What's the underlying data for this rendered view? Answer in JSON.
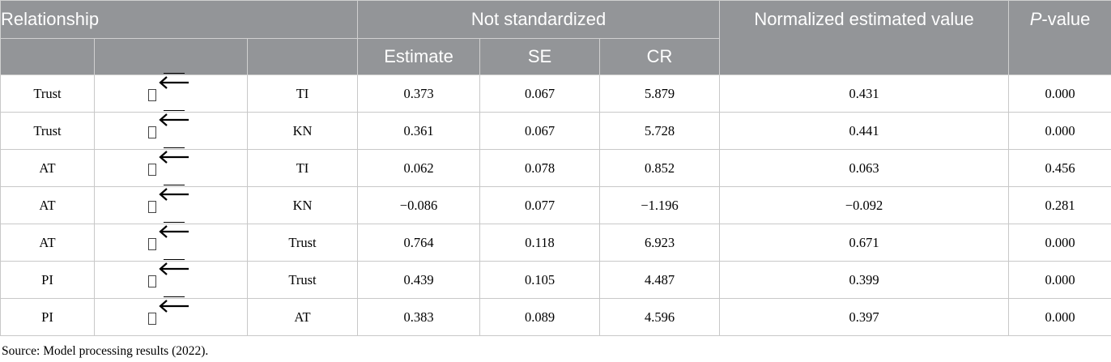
{
  "header": {
    "relationship": "Relationship",
    "not_standardized": "Not standardized",
    "normalized": "Normalized estimated value",
    "p_prefix": "P",
    "p_suffix": "-value",
    "estimate": "Estimate",
    "se": "SE",
    "cr": "CR"
  },
  "rows": [
    {
      "from": "Trust",
      "to": "TI",
      "estimate": "0.373",
      "se": "0.067",
      "cr": "5.879",
      "normalized": "0.431",
      "p": "0.000"
    },
    {
      "from": "Trust",
      "to": "KN",
      "estimate": "0.361",
      "se": "0.067",
      "cr": "5.728",
      "normalized": "0.441",
      "p": "0.000"
    },
    {
      "from": "AT",
      "to": "TI",
      "estimate": "0.062",
      "se": "0.078",
      "cr": "0.852",
      "normalized": "0.063",
      "p": "0.456"
    },
    {
      "from": "AT",
      "to": "KN",
      "estimate": "−0.086",
      "se": "0.077",
      "cr": "−1.196",
      "normalized": "−0.092",
      "p": "0.281"
    },
    {
      "from": "AT",
      "to": "Trust",
      "estimate": "0.764",
      "se": "0.118",
      "cr": "6.923",
      "normalized": "0.671",
      "p": "0.000"
    },
    {
      "from": "PI",
      "to": "Trust",
      "estimate": "0.439",
      "se": "0.105",
      "cr": "4.487",
      "normalized": "0.399",
      "p": "0.000"
    },
    {
      "from": "PI",
      "to": "AT",
      "estimate": "0.383",
      "se": "0.089",
      "cr": "4.596",
      "normalized": "0.397",
      "p": "0.000"
    }
  ],
  "source": "Source: Model processing results (2022).",
  "colors": {
    "header_bg": "#939598",
    "header_text": "#ffffff",
    "border": "#c8c8c8"
  },
  "icons": {
    "relation": "left-arrow-icon"
  }
}
